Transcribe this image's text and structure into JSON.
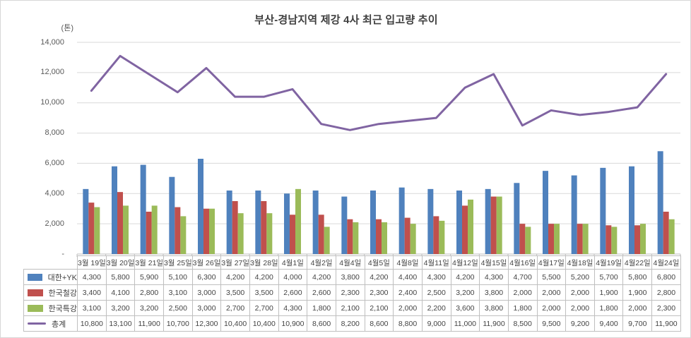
{
  "title": "부산-경남지역 제강 4사 최근 입고량 추이",
  "unit_label": "(톤)",
  "y_axis": {
    "tick_labels": [
      "14,000",
      "12,000",
      "10,000",
      "8,000",
      "6,000",
      "4,000",
      "2,000",
      "-"
    ],
    "max": 14000,
    "min": 0,
    "step": 2000
  },
  "colors": {
    "series_blue": "#4F81BD",
    "series_red": "#C0504D",
    "series_green": "#9BBB59",
    "series_purple": "#8064A2",
    "gridline": "#D9D9D9",
    "axis_line": "#BFBFBF",
    "table_border": "#BFBFBF",
    "text_gray": "#595959"
  },
  "chart_data": {
    "type": "combo-bar-line",
    "title": "부산-경남지역 제강 4사 최근 입고량 추이",
    "ylabel": "(톤)",
    "ylim": [
      0,
      14000
    ],
    "y_step": 2000,
    "grid": true,
    "legend_position": "data-table-left",
    "categories": [
      "3월 19일",
      "3월 20일",
      "3월 21일",
      "3월 25일",
      "3월 26일",
      "3월 27일",
      "3월 28일",
      "4월1일",
      "4월2일",
      "4월4일",
      "4월5일",
      "4월8일",
      "4월11일",
      "4월12일",
      "4월15일",
      "4월16일",
      "4월17일",
      "4월18일",
      "4월19일",
      "4월22일",
      "4월24일"
    ],
    "series": [
      {
        "name": "대한+YK",
        "type": "bar",
        "color": "#4F81BD",
        "values": [
          4300,
          5800,
          5900,
          5100,
          6300,
          4200,
          4200,
          4000,
          4200,
          3800,
          4200,
          4400,
          4300,
          4200,
          4300,
          4700,
          5500,
          5200,
          5700,
          5800,
          6800
        ]
      },
      {
        "name": "한국철강",
        "type": "bar",
        "color": "#C0504D",
        "values": [
          3400,
          4100,
          2800,
          3100,
          3000,
          3500,
          3500,
          2600,
          2600,
          2300,
          2300,
          2400,
          2500,
          3200,
          3800,
          2000,
          2000,
          2000,
          1900,
          1900,
          2800
        ]
      },
      {
        "name": "한국특강",
        "type": "bar",
        "color": "#9BBB59",
        "values": [
          3100,
          3200,
          3200,
          2500,
          3000,
          2700,
          2700,
          4300,
          1800,
          2100,
          2100,
          2000,
          2200,
          3600,
          3800,
          1800,
          2000,
          2000,
          1800,
          2000,
          2300
        ]
      },
      {
        "name": "총계",
        "type": "line",
        "color": "#8064A2",
        "values": [
          10800,
          13100,
          11900,
          10700,
          12300,
          10400,
          10400,
          10900,
          8600,
          8200,
          8600,
          8800,
          9000,
          11000,
          11900,
          8500,
          9500,
          9200,
          9400,
          9700,
          11900
        ]
      }
    ]
  }
}
